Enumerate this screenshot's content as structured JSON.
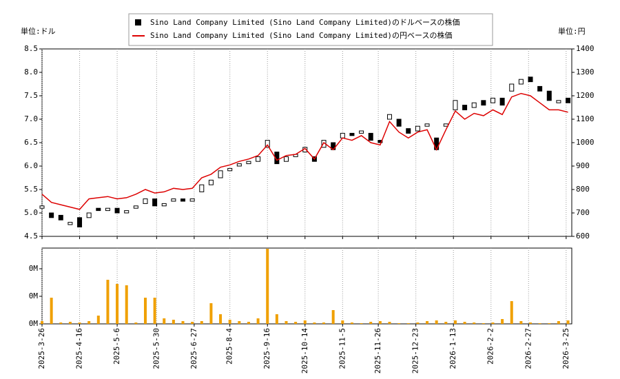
{
  "chart_data": [
    {
      "type": "candlestick",
      "ylabel": "単位:ドル",
      "y2label": "単位:円",
      "x": [
        0,
        5,
        10,
        15,
        20,
        25,
        30,
        35,
        40,
        45,
        50,
        55,
        60,
        65,
        70,
        75,
        80,
        85,
        90,
        95,
        100,
        105,
        110,
        115,
        120,
        125,
        130,
        135,
        140,
        145,
        150,
        155,
        160,
        165,
        170,
        175,
        180,
        185,
        190,
        195,
        200,
        205,
        210,
        215,
        220,
        225,
        230,
        235,
        240,
        245,
        250,
        255,
        260,
        265,
        270,
        275,
        280
      ],
      "series": [
        {
          "name": "Sino Land Company Limited (Sino Land Company Limited)のドルベースの株価",
          "color": "#000000",
          "open": [
            5.1,
            5.0,
            4.95,
            4.75,
            4.9,
            4.9,
            5.1,
            5.05,
            5.1,
            5.0,
            5.1,
            5.2,
            5.3,
            5.15,
            5.25,
            5.3,
            5.25,
            5.45,
            5.6,
            5.75,
            5.9,
            6.0,
            6.05,
            6.1,
            6.4,
            6.3,
            6.1,
            6.2,
            6.3,
            6.2,
            6.4,
            6.5,
            6.6,
            6.7,
            6.7,
            6.7,
            6.55,
            7.0,
            7.0,
            6.8,
            6.75,
            6.85,
            6.6,
            6.85,
            7.2,
            7.3,
            7.25,
            7.4,
            7.35,
            7.45,
            7.6,
            7.75,
            7.9,
            7.7,
            7.6,
            7.35,
            7.45
          ],
          "close": [
            5.15,
            4.9,
            4.85,
            4.8,
            4.7,
            5.0,
            5.05,
            5.1,
            5.0,
            5.05,
            5.15,
            5.3,
            5.15,
            5.2,
            5.3,
            5.25,
            5.3,
            5.6,
            5.7,
            5.9,
            5.95,
            6.05,
            6.1,
            6.2,
            6.55,
            6.05,
            6.2,
            6.25,
            6.4,
            6.1,
            6.55,
            6.35,
            6.7,
            6.65,
            6.75,
            6.55,
            6.5,
            7.1,
            6.85,
            6.7,
            6.85,
            6.9,
            6.35,
            6.9,
            7.4,
            7.2,
            7.35,
            7.3,
            7.45,
            7.3,
            7.75,
            7.85,
            7.8,
            7.6,
            7.4,
            7.4,
            7.35
          ]
        },
        {
          "name": "Sino Land Company Limited (Sino Land Company Limited)の円ベースの株価",
          "color": "#dd0000",
          "axis": "y2",
          "values": [
            780,
            745,
            735,
            725,
            715,
            760,
            765,
            770,
            760,
            765,
            780,
            800,
            785,
            790,
            805,
            800,
            805,
            850,
            865,
            895,
            905,
            920,
            930,
            945,
            990,
            925,
            945,
            950,
            975,
            930,
            1000,
            970,
            1020,
            1010,
            1030,
            1000,
            990,
            1090,
            1045,
            1020,
            1045,
            1055,
            970,
            1055,
            1135,
            1100,
            1125,
            1115,
            1140,
            1120,
            1195,
            1210,
            1200,
            1170,
            1140,
            1140,
            1130
          ]
        }
      ],
      "xlim": [
        0,
        282
      ],
      "xticks": [
        0,
        20,
        40,
        61,
        81,
        100,
        120,
        140,
        160,
        179,
        199,
        219,
        239,
        259,
        279
      ],
      "ylim": [
        4.5,
        8.5
      ],
      "yticks": [
        4.5,
        {
          "value": 5,
          "label": "5.0"
        },
        5.5,
        {
          "value": 6,
          "label": "6.0"
        },
        6.5,
        {
          "value": 7,
          "label": "7.0"
        },
        7.5,
        {
          "value": 8,
          "label": "8.0"
        },
        8.5
      ],
      "y2lim": [
        600,
        1400
      ],
      "y2ticks": [
        600,
        700,
        800,
        900,
        1000,
        1100,
        1200,
        1300,
        1400
      ],
      "grid": true
    },
    {
      "type": "bar",
      "x": [
        0,
        5,
        10,
        15,
        20,
        25,
        30,
        35,
        40,
        45,
        50,
        55,
        60,
        65,
        70,
        75,
        80,
        85,
        90,
        95,
        100,
        105,
        110,
        115,
        120,
        125,
        130,
        135,
        140,
        145,
        150,
        155,
        160,
        165,
        170,
        175,
        180,
        185,
        190,
        195,
        200,
        205,
        210,
        215,
        220,
        225,
        230,
        235,
        240,
        245,
        250,
        255,
        260,
        265,
        270,
        275,
        280
      ],
      "values": [
        20000,
        190000,
        10000,
        15000,
        10000,
        20000,
        60000,
        320000,
        290000,
        280000,
        10000,
        190000,
        190000,
        40000,
        30000,
        20000,
        15000,
        20000,
        150000,
        70000,
        30000,
        20000,
        15000,
        40000,
        545000,
        70000,
        20000,
        15000,
        25000,
        10000,
        10000,
        100000,
        25000,
        10000,
        5000,
        15000,
        20000,
        15000,
        5000,
        5000,
        10000,
        20000,
        25000,
        15000,
        25000,
        15000,
        10000,
        5000,
        10000,
        35000,
        165000,
        20000,
        10000,
        5000,
        5000,
        20000,
        25000
      ],
      "color": "#f0a000",
      "xlim": [
        0,
        282
      ],
      "xticks": [
        {
          "value": 0,
          "label": "2025-3-26"
        },
        {
          "value": 20,
          "label": "2025-4-16"
        },
        {
          "value": 40,
          "label": "2025-5-6"
        },
        {
          "value": 61,
          "label": "2025-5-30"
        },
        {
          "value": 81,
          "label": "2025-6-27"
        },
        {
          "value": 100,
          "label": "2025-8-4"
        },
        {
          "value": 120,
          "label": "2025-9-16"
        },
        {
          "value": 140,
          "label": "2025-10-14"
        },
        {
          "value": 160,
          "label": "2025-11-5"
        },
        {
          "value": 179,
          "label": "2025-11-26"
        },
        {
          "value": 199,
          "label": "2025-12-23"
        },
        {
          "value": 219,
          "label": "2026-1-13"
        },
        {
          "value": 239,
          "label": "2026-2-2"
        },
        {
          "value": 259,
          "label": "2026-2-27"
        },
        {
          "value": 279,
          "label": "2026-3-25"
        }
      ],
      "ylim": [
        0,
        550000
      ],
      "yticks": [
        {
          "value": 0,
          "label": "0M"
        },
        {
          "value": 200000,
          "label": "0M"
        },
        {
          "value": 400000,
          "label": "0M"
        }
      ],
      "grid": true
    }
  ]
}
